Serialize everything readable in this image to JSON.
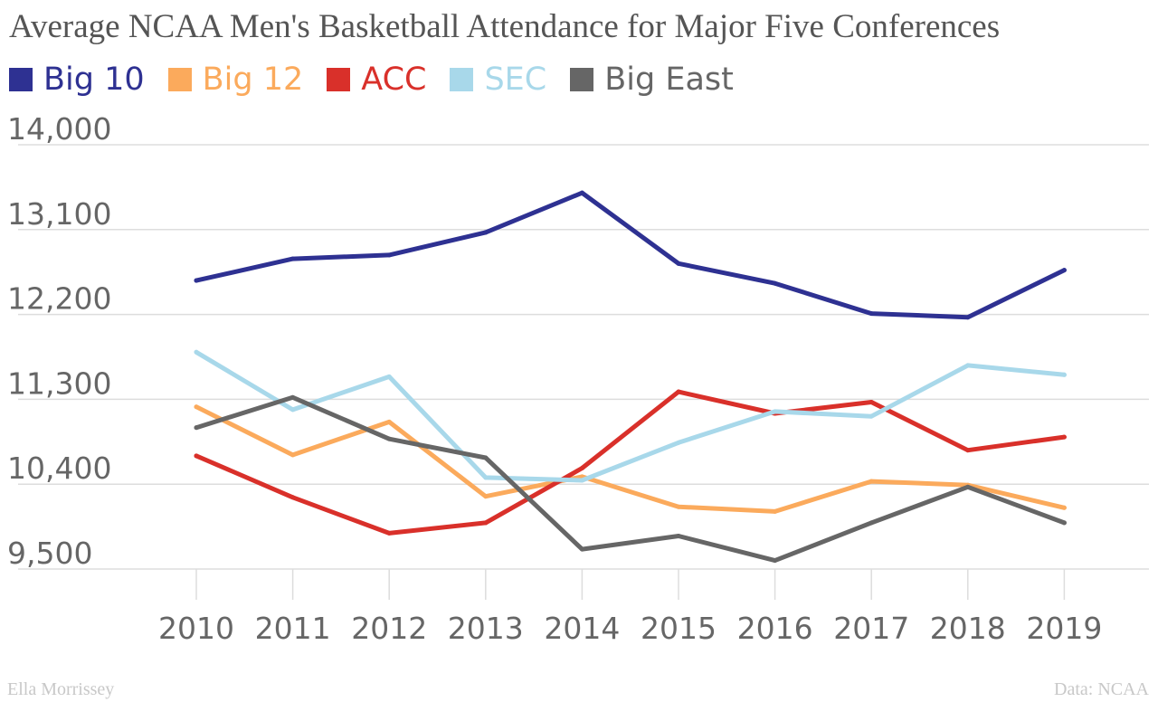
{
  "chart_data": {
    "type": "line",
    "title": "Average NCAA Men's Basketball Attendance for Major Five Conferences",
    "xlabel": "",
    "ylabel": "",
    "categories": [
      "2010",
      "2011",
      "2012",
      "2013",
      "2014",
      "2015",
      "2016",
      "2017",
      "2018",
      "2019"
    ],
    "ylim": [
      9500,
      14000
    ],
    "yticks": [
      9500,
      10400,
      11300,
      12200,
      13100,
      14000
    ],
    "ytick_labels": [
      "9,500",
      "10,400",
      "11,300",
      "12,200",
      "13,100",
      "14,000"
    ],
    "grid": true,
    "legend_position": "top-left",
    "series": [
      {
        "name": "Big 10",
        "color": "#2e3192",
        "values": [
          12560,
          12790,
          12830,
          13070,
          13490,
          12740,
          12530,
          12210,
          12170,
          12670
        ]
      },
      {
        "name": "Big 12",
        "color": "#fbaa5c",
        "values": [
          11220,
          10710,
          11060,
          10270,
          10480,
          10160,
          10110,
          10430,
          10390,
          10150
        ]
      },
      {
        "name": "ACC",
        "color": "#d9302a",
        "values": [
          10700,
          10260,
          9880,
          9990,
          10570,
          11380,
          11150,
          11270,
          10760,
          10900
        ]
      },
      {
        "name": "SEC",
        "color": "#a8d8ea",
        "values": [
          11800,
          11190,
          11540,
          10470,
          10440,
          10840,
          11170,
          11120,
          11660,
          11560
        ]
      },
      {
        "name": "Big East",
        "color": "#666666",
        "values": [
          11000,
          11320,
          10880,
          10680,
          9710,
          9850,
          9590,
          9990,
          10370,
          9990
        ]
      }
    ]
  },
  "footer": {
    "author": "Ella Morrissey",
    "source": "Data: NCAA"
  }
}
